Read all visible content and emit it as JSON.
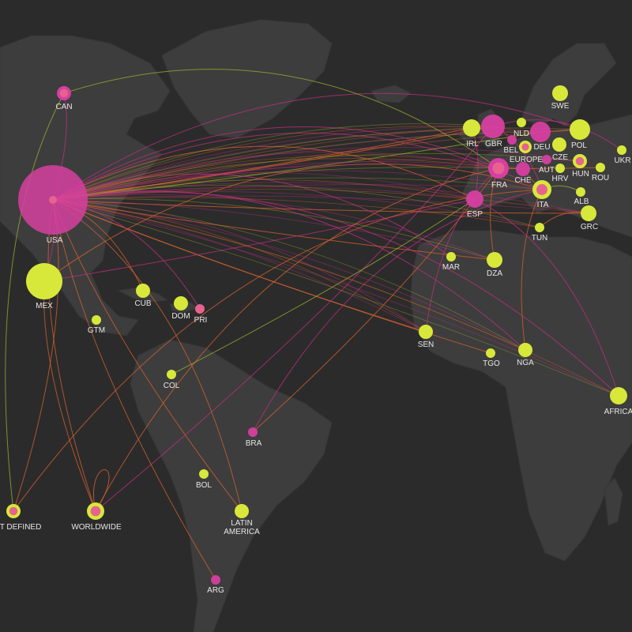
{
  "palette": {
    "background": "#2b2b2b",
    "land": "#3d3d3d",
    "magenta": "#d63fa0",
    "pink": "#e8628f",
    "lime": "#d7e83a",
    "label": "#e6e6e6",
    "flow_magenta": "#c0307f",
    "flow_orange": "#d9632f",
    "flow_lime": "#9fb030"
  },
  "nodes": [
    {
      "id": "CAN",
      "label": "CAN",
      "type": "ring-magenta"
    },
    {
      "id": "USA",
      "label": "USA",
      "type": "magenta"
    },
    {
      "id": "MEX",
      "label": "MEX",
      "type": "lime"
    },
    {
      "id": "CUB",
      "label": "CUB",
      "type": "lime"
    },
    {
      "id": "DOM",
      "label": "DOM",
      "type": "lime"
    },
    {
      "id": "PRI",
      "label": "PRI",
      "type": "pink"
    },
    {
      "id": "GTM",
      "label": "GTM",
      "type": "lime"
    },
    {
      "id": "COL",
      "label": "COL",
      "type": "lime"
    },
    {
      "id": "BRA",
      "label": "BRA",
      "type": "magenta"
    },
    {
      "id": "BOL",
      "label": "BOL",
      "type": "lime"
    },
    {
      "id": "LATAM",
      "label": "LATIN\nAMERICA",
      "type": "lime"
    },
    {
      "id": "ARG",
      "label": "ARG",
      "type": "magenta"
    },
    {
      "id": "NOTDEF",
      "label": "T DEFINED",
      "type": "ring-lime"
    },
    {
      "id": "WORLD",
      "label": "WORLDWIDE",
      "type": "ring-lime"
    },
    {
      "id": "SWE",
      "label": "SWE",
      "type": "lime"
    },
    {
      "id": "IRL",
      "label": "IRL",
      "type": "lime"
    },
    {
      "id": "GBR",
      "label": "GBR",
      "type": "magenta"
    },
    {
      "id": "NLD",
      "label": "NLD",
      "type": "lime"
    },
    {
      "id": "BEL",
      "label": "BEL",
      "type": "magenta"
    },
    {
      "id": "DEU",
      "label": "DEU",
      "type": "magenta"
    },
    {
      "id": "EUROPE",
      "label": "EUROPE",
      "type": "ring-lime"
    },
    {
      "id": "POL",
      "label": "POL",
      "type": "lime"
    },
    {
      "id": "CZE",
      "label": "CZE",
      "type": "lime"
    },
    {
      "id": "UKR",
      "label": "UKR",
      "type": "lime"
    },
    {
      "id": "AUT",
      "label": "AUT",
      "type": "magenta"
    },
    {
      "id": "HUN",
      "label": "HUN",
      "type": "ring-lime"
    },
    {
      "id": "ROU",
      "label": "ROU",
      "type": "lime"
    },
    {
      "id": "FRA",
      "label": "FRA",
      "type": "ring-magenta"
    },
    {
      "id": "CHE",
      "label": "CHE",
      "type": "magenta"
    },
    {
      "id": "HRV",
      "label": "HRV",
      "type": "lime"
    },
    {
      "id": "ITA",
      "label": "ITA",
      "type": "ring-lime"
    },
    {
      "id": "ESP",
      "label": "ESP",
      "type": "magenta"
    },
    {
      "id": "ALB",
      "label": "ALB",
      "type": "lime"
    },
    {
      "id": "GRC",
      "label": "GRC",
      "type": "lime"
    },
    {
      "id": "TUN",
      "label": "TUN",
      "type": "lime"
    },
    {
      "id": "MAR",
      "label": "MAR",
      "type": "lime"
    },
    {
      "id": "DZA",
      "label": "DZA",
      "type": "lime"
    },
    {
      "id": "SEN",
      "label": "SEN",
      "type": "lime"
    },
    {
      "id": "TGO",
      "label": "TGO",
      "type": "lime"
    },
    {
      "id": "NGA",
      "label": "NGA",
      "type": "lime"
    },
    {
      "id": "AFRICA",
      "label": "AFRICA",
      "type": "lime"
    }
  ],
  "flows": [
    {
      "from": "USA",
      "to": "FRA",
      "color": "flow_magenta"
    },
    {
      "from": "USA",
      "to": "GBR",
      "color": "flow_orange"
    },
    {
      "from": "USA",
      "to": "ITA",
      "color": "flow_magenta"
    },
    {
      "from": "USA",
      "to": "DEU",
      "color": "flow_lime"
    },
    {
      "from": "USA",
      "to": "ESP",
      "color": "flow_orange"
    },
    {
      "from": "USA",
      "to": "IRL",
      "color": "flow_orange"
    },
    {
      "from": "USA",
      "to": "POL",
      "color": "flow_magenta"
    },
    {
      "from": "USA",
      "to": "SEN",
      "color": "flow_orange"
    },
    {
      "from": "USA",
      "to": "NGA",
      "color": "flow_magenta"
    },
    {
      "from": "USA",
      "to": "GRC",
      "color": "flow_orange"
    },
    {
      "from": "USA",
      "to": "AFRICA",
      "color": "flow_magenta"
    },
    {
      "from": "USA",
      "to": "DZA",
      "color": "flow_orange"
    },
    {
      "from": "USA",
      "to": "MAR",
      "color": "flow_magenta"
    },
    {
      "from": "USA",
      "to": "TGO",
      "color": "flow_orange"
    },
    {
      "from": "USA",
      "to": "MEX",
      "color": "flow_magenta"
    },
    {
      "from": "USA",
      "to": "CAN",
      "color": "flow_magenta"
    },
    {
      "from": "USA",
      "to": "PRI",
      "color": "flow_magenta"
    },
    {
      "from": "USA",
      "to": "WORLD",
      "color": "flow_orange"
    },
    {
      "from": "USA",
      "to": "NOTDEF",
      "color": "flow_orange"
    },
    {
      "from": "USA",
      "to": "LATAM",
      "color": "flow_orange"
    },
    {
      "from": "USA",
      "to": "CUB",
      "color": "flow_orange"
    },
    {
      "from": "CAN",
      "to": "NOTDEF",
      "color": "flow_lime"
    },
    {
      "from": "CAN",
      "to": "FRA",
      "color": "flow_lime"
    },
    {
      "from": "MEX",
      "to": "ESP",
      "color": "flow_magenta"
    },
    {
      "from": "MEX",
      "to": "ITA",
      "color": "flow_orange"
    },
    {
      "from": "MEX",
      "to": "WORLD",
      "color": "flow_orange"
    },
    {
      "from": "WORLD",
      "to": "FRA",
      "color": "flow_orange"
    },
    {
      "from": "WORLD",
      "to": "GBR",
      "color": "flow_magenta"
    },
    {
      "from": "NOTDEF",
      "to": "ITA",
      "color": "flow_orange"
    },
    {
      "from": "COL",
      "to": "ESP",
      "color": "flow_lime"
    },
    {
      "from": "BRA",
      "to": "ITA",
      "color": "flow_magenta"
    },
    {
      "from": "BRA",
      "to": "FRA",
      "color": "flow_orange"
    },
    {
      "from": "ARG",
      "to": "USA",
      "color": "flow_orange"
    },
    {
      "from": "LATAM",
      "to": "USA",
      "color": "flow_orange"
    },
    {
      "from": "GBR",
      "to": "ITA",
      "color": "flow_magenta"
    },
    {
      "from": "FRA",
      "to": "DZA",
      "color": "flow_orange"
    },
    {
      "from": "SEN",
      "to": "FRA",
      "color": "flow_magenta"
    },
    {
      "from": "ITA",
      "to": "NGA",
      "color": "flow_orange"
    },
    {
      "from": "ESP",
      "to": "AFRICA",
      "color": "flow_magenta"
    },
    {
      "from": "DEU",
      "to": "POL",
      "color": "flow_orange"
    },
    {
      "from": "GBR",
      "to": "UKR",
      "color": "flow_magenta"
    },
    {
      "from": "FRA",
      "to": "ROU",
      "color": "flow_orange"
    },
    {
      "from": "ITA",
      "to": "ALB",
      "color": "flow_lime"
    },
    {
      "from": "GRC",
      "to": "TUN",
      "color": "flow_orange"
    },
    {
      "from": "IRL",
      "to": "ESP",
      "color": "flow_magenta"
    },
    {
      "from": "CHE",
      "to": "ITA",
      "color": "flow_orange"
    }
  ]
}
